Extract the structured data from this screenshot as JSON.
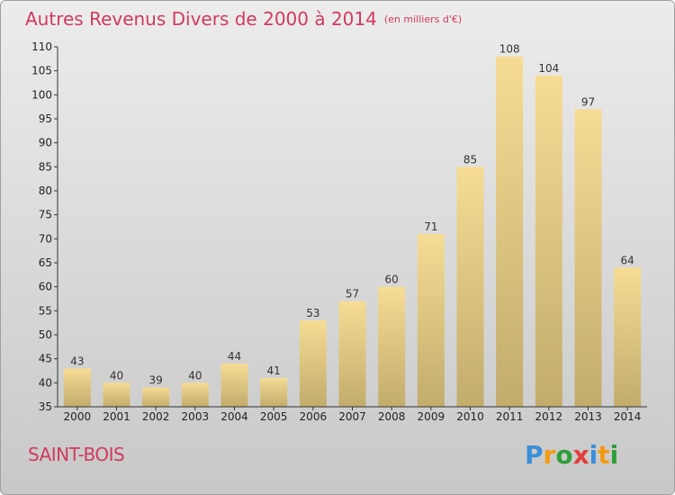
{
  "title": {
    "main": "Autres Revenus Divers de 2000 à 2014",
    "unit": "(en milliers d'€)"
  },
  "location": "SAINT-BOIS",
  "logo": {
    "text": "Proxiti",
    "colors": [
      "#3a8fd8",
      "#f29b12",
      "#2f9e3a",
      "#e43d3d",
      "#3a8fd8",
      "#f29b12",
      "#2f9e3a"
    ]
  },
  "colors": {
    "title": "#d03a5e",
    "bar_top": "#f6dc94",
    "bar_bottom": "#c2ac6c",
    "axis": "#333333"
  },
  "chart_data": {
    "type": "bar",
    "title": "Autres Revenus Divers de 2000 à 2014",
    "categories": [
      "2000",
      "2001",
      "2002",
      "2003",
      "2004",
      "2005",
      "2006",
      "2007",
      "2008",
      "2009",
      "2010",
      "2011",
      "2012",
      "2013",
      "2014"
    ],
    "values": [
      43,
      40,
      39,
      40,
      44,
      41,
      53,
      57,
      60,
      71,
      85,
      108,
      104,
      97,
      64
    ],
    "ylim": [
      35,
      110
    ],
    "yticks": [
      35,
      40,
      45,
      50,
      55,
      60,
      65,
      70,
      75,
      80,
      85,
      90,
      95,
      100,
      105,
      110
    ],
    "grid": false,
    "xlabel": "",
    "ylabel": ""
  }
}
